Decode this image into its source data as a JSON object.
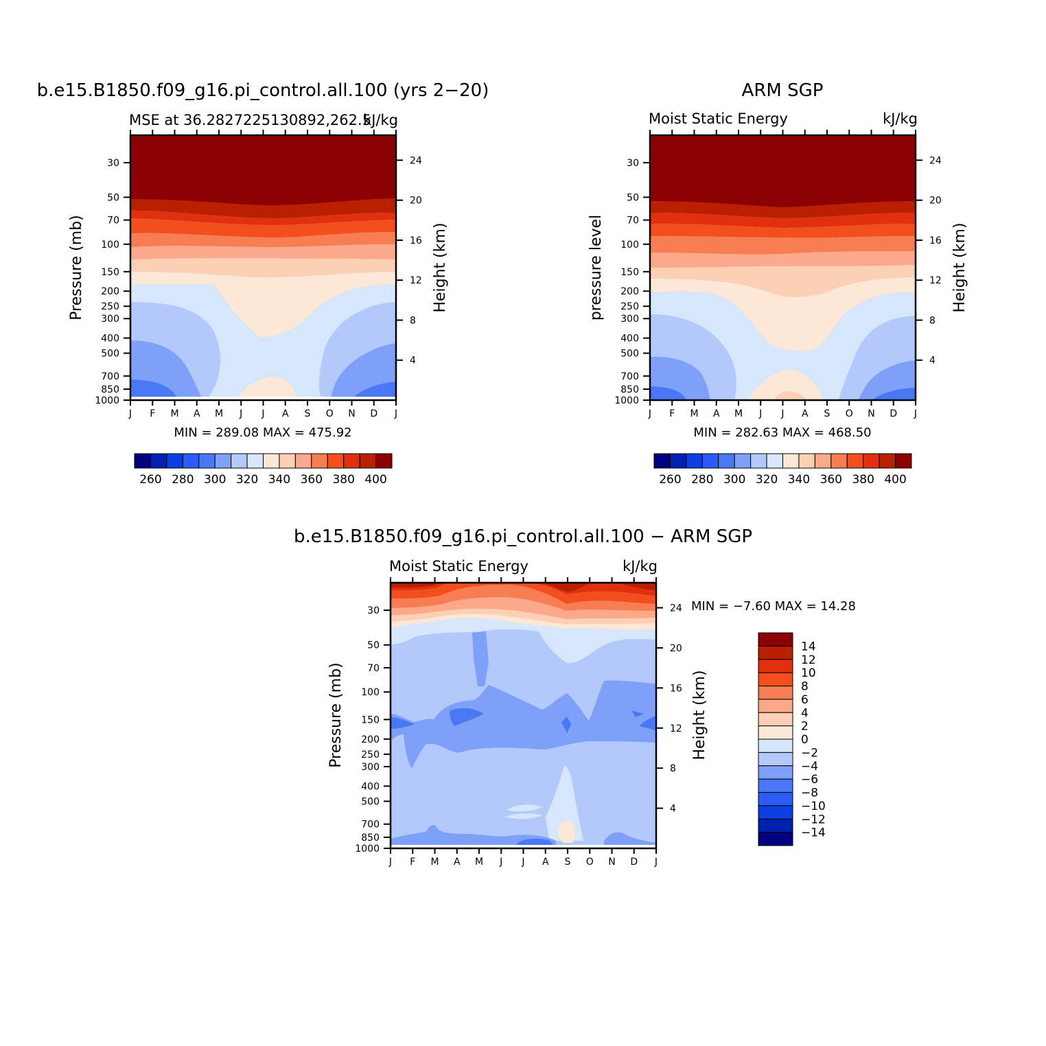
{
  "chart_data": [
    {
      "type": "heatmap",
      "title": "b.e15.B1850.f09_g16.pi_control.all.100 (yrs 2−20)",
      "subtitle_left": "MSE at 36.2827225130892,262.5",
      "subtitle_right": "kJ/kg",
      "ylabel": "Pressure (mb)",
      "ylabel_right": "Height (km)",
      "x_ticks": [
        "J",
        "F",
        "M",
        "A",
        "M",
        "J",
        "J",
        "A",
        "S",
        "O",
        "N",
        "D",
        "J"
      ],
      "y_ticks": [
        "30",
        "50",
        "70",
        "100",
        "150",
        "200",
        "250",
        "300",
        "400",
        "500",
        "700",
        "850",
        "1000"
      ],
      "y_right_ticks": [
        "24",
        "20",
        "16",
        "12",
        "8",
        "4"
      ],
      "minmax_text": "MIN =  289.08  MAX =  475.92",
      "colorbar": {
        "orientation": "horizontal",
        "labels": [
          "260",
          "280",
          "300",
          "320",
          "340",
          "360",
          "380",
          "400"
        ],
        "colors": [
          "#000080",
          "#0020b0",
          "#0b3fe0",
          "#2b5cf5",
          "#4a78f5",
          "#7ea0f8",
          "#b3c9fb",
          "#d6e6fb",
          "#fde8d8",
          "#fcd0b5",
          "#fba98a",
          "#f77e52",
          "#f24f1c",
          "#e03010",
          "#b82000",
          "#8b0000"
        ]
      }
    },
    {
      "type": "heatmap",
      "title": "ARM SGP",
      "subtitle_left": "Moist Static Energy",
      "subtitle_right": "kJ/kg",
      "ylabel": "pressure level",
      "ylabel_right": "Height (km)",
      "x_ticks": [
        "J",
        "F",
        "M",
        "A",
        "M",
        "J",
        "J",
        "A",
        "S",
        "O",
        "N",
        "D",
        "J"
      ],
      "y_ticks": [
        "30",
        "50",
        "70",
        "100",
        "150",
        "200",
        "250",
        "300",
        "400",
        "500",
        "700",
        "850",
        "1000"
      ],
      "y_right_ticks": [
        "24",
        "20",
        "16",
        "12",
        "8",
        "4"
      ],
      "minmax_text": "MIN =  282.63  MAX =  468.50",
      "colorbar": {
        "orientation": "horizontal",
        "labels": [
          "260",
          "280",
          "300",
          "320",
          "340",
          "360",
          "380",
          "400"
        ],
        "colors": [
          "#000080",
          "#0020b0",
          "#0b3fe0",
          "#2b5cf5",
          "#4a78f5",
          "#7ea0f8",
          "#b3c9fb",
          "#d6e6fb",
          "#fde8d8",
          "#fcd0b5",
          "#fba98a",
          "#f77e52",
          "#f24f1c",
          "#e03010",
          "#b82000",
          "#8b0000"
        ]
      }
    },
    {
      "type": "heatmap",
      "title": "b.e15.B1850.f09_g16.pi_control.all.100 − ARM SGP",
      "subtitle_left": "Moist Static Energy",
      "subtitle_right": "kJ/kg",
      "ylabel": "Pressure (mb)",
      "ylabel_right": "Height (km)",
      "x_ticks": [
        "J",
        "F",
        "M",
        "A",
        "M",
        "J",
        "J",
        "A",
        "S",
        "O",
        "N",
        "D",
        "J"
      ],
      "y_ticks": [
        "30",
        "50",
        "70",
        "100",
        "150",
        "200",
        "250",
        "300",
        "400",
        "500",
        "700",
        "850",
        "1000"
      ],
      "y_right_ticks": [
        "24",
        "20",
        "16",
        "12",
        "8",
        "4"
      ],
      "minmax_text": "MIN =   −7.60  MAX =   14.28",
      "colorbar": {
        "orientation": "vertical",
        "labels": [
          "14",
          "12",
          "10",
          "8",
          "6",
          "4",
          "2",
          "0",
          "−2",
          "−4",
          "−6",
          "−8",
          "−10",
          "−12",
          "−14"
        ],
        "colors": [
          "#8b0000",
          "#b82000",
          "#e03010",
          "#f24f1c",
          "#f77e52",
          "#fba98a",
          "#fcd0b5",
          "#fde8d8",
          "#d6e6fb",
          "#b3c9fb",
          "#7ea0f8",
          "#4a78f5",
          "#2b5cf5",
          "#0b3fe0",
          "#0020b0",
          "#000080"
        ]
      }
    }
  ]
}
